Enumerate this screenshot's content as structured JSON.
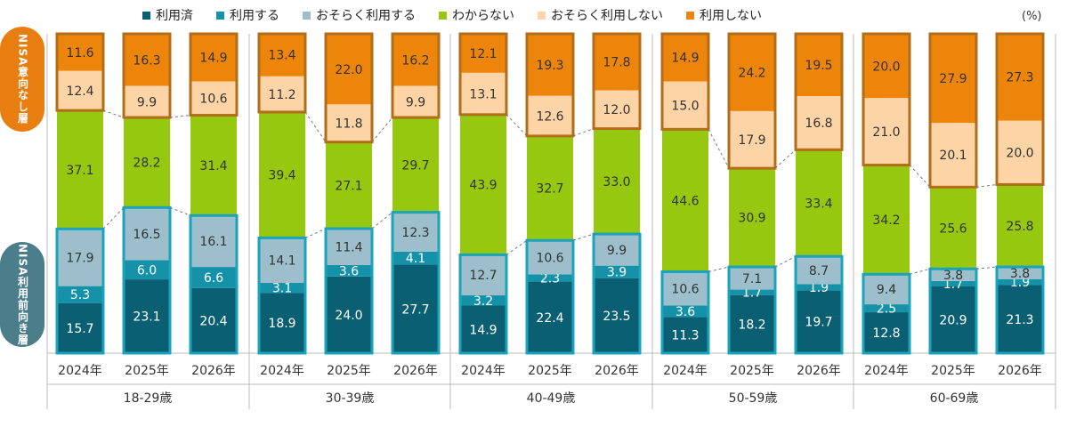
{
  "legend": [
    "利用済",
    "利用する",
    "おそらく利用する",
    "わからない",
    "おそらく利用しない",
    "利用しない"
  ],
  "unit_label": "(%)",
  "group_labels": {
    "no_intent": "NISA意向なし層",
    "intent": "NISA利用前向き層"
  },
  "colors": {
    "used": "#0b5f72",
    "will_use": "#1592a8",
    "probably_use": "#9dbfcc",
    "unknown": "#95c80f",
    "probably_not": "#fcd4a5",
    "not_use": "#ee850b",
    "no_intent_border": "#b36d18",
    "intent_border": "#1aa3bd",
    "tag_orange": "#e87e0f",
    "tag_teal": "#4b7d8a"
  },
  "chart_data": {
    "type": "bar",
    "stacked": true,
    "unit": "%",
    "series_order": [
      "利用済",
      "利用する",
      "おそらく利用する",
      "わからない",
      "おそらく利用しない",
      "利用しない"
    ],
    "groups": [
      {
        "label": "18-29歳",
        "bars": [
          {
            "year": "2024年",
            "values": [
              15.7,
              5.3,
              17.9,
              37.1,
              12.4,
              11.6
            ]
          },
          {
            "year": "2025年",
            "values": [
              23.1,
              6.0,
              16.5,
              28.2,
              9.9,
              16.3
            ]
          },
          {
            "year": "2026年",
            "values": [
              20.4,
              6.6,
              16.1,
              31.4,
              10.6,
              14.9
            ]
          }
        ]
      },
      {
        "label": "30-39歳",
        "bars": [
          {
            "year": "2024年",
            "values": [
              18.9,
              3.1,
              14.1,
              39.4,
              11.2,
              13.4
            ]
          },
          {
            "year": "2025年",
            "values": [
              24.0,
              3.6,
              11.4,
              27.1,
              11.8,
              22.0
            ]
          },
          {
            "year": "2026年",
            "values": [
              27.7,
              4.1,
              12.3,
              29.7,
              9.9,
              16.2
            ]
          }
        ]
      },
      {
        "label": "40-49歳",
        "bars": [
          {
            "year": "2024年",
            "values": [
              14.9,
              3.2,
              12.7,
              43.9,
              13.1,
              12.1
            ]
          },
          {
            "year": "2025年",
            "values": [
              22.4,
              2.3,
              10.6,
              32.7,
              12.6,
              19.3
            ]
          },
          {
            "year": "2026年",
            "values": [
              23.5,
              3.9,
              9.9,
              33.0,
              12.0,
              17.8
            ]
          }
        ]
      },
      {
        "label": "50-59歳",
        "bars": [
          {
            "year": "2024年",
            "values": [
              11.3,
              3.6,
              10.6,
              44.6,
              15.0,
              14.9
            ]
          },
          {
            "year": "2025年",
            "values": [
              18.2,
              1.7,
              7.1,
              30.9,
              17.9,
              24.2
            ]
          },
          {
            "year": "2026年",
            "values": [
              19.7,
              1.9,
              8.7,
              33.4,
              16.8,
              19.5
            ]
          }
        ]
      },
      {
        "label": "60-69歳",
        "bars": [
          {
            "year": "2024年",
            "values": [
              12.8,
              2.5,
              9.4,
              34.2,
              21.0,
              20.0
            ]
          },
          {
            "year": "2025年",
            "values": [
              20.9,
              1.7,
              3.8,
              25.6,
              20.1,
              27.9
            ]
          },
          {
            "year": "2026年",
            "values": [
              21.3,
              1.9,
              3.8,
              25.8,
              20.0,
              27.3
            ]
          }
        ]
      }
    ]
  }
}
